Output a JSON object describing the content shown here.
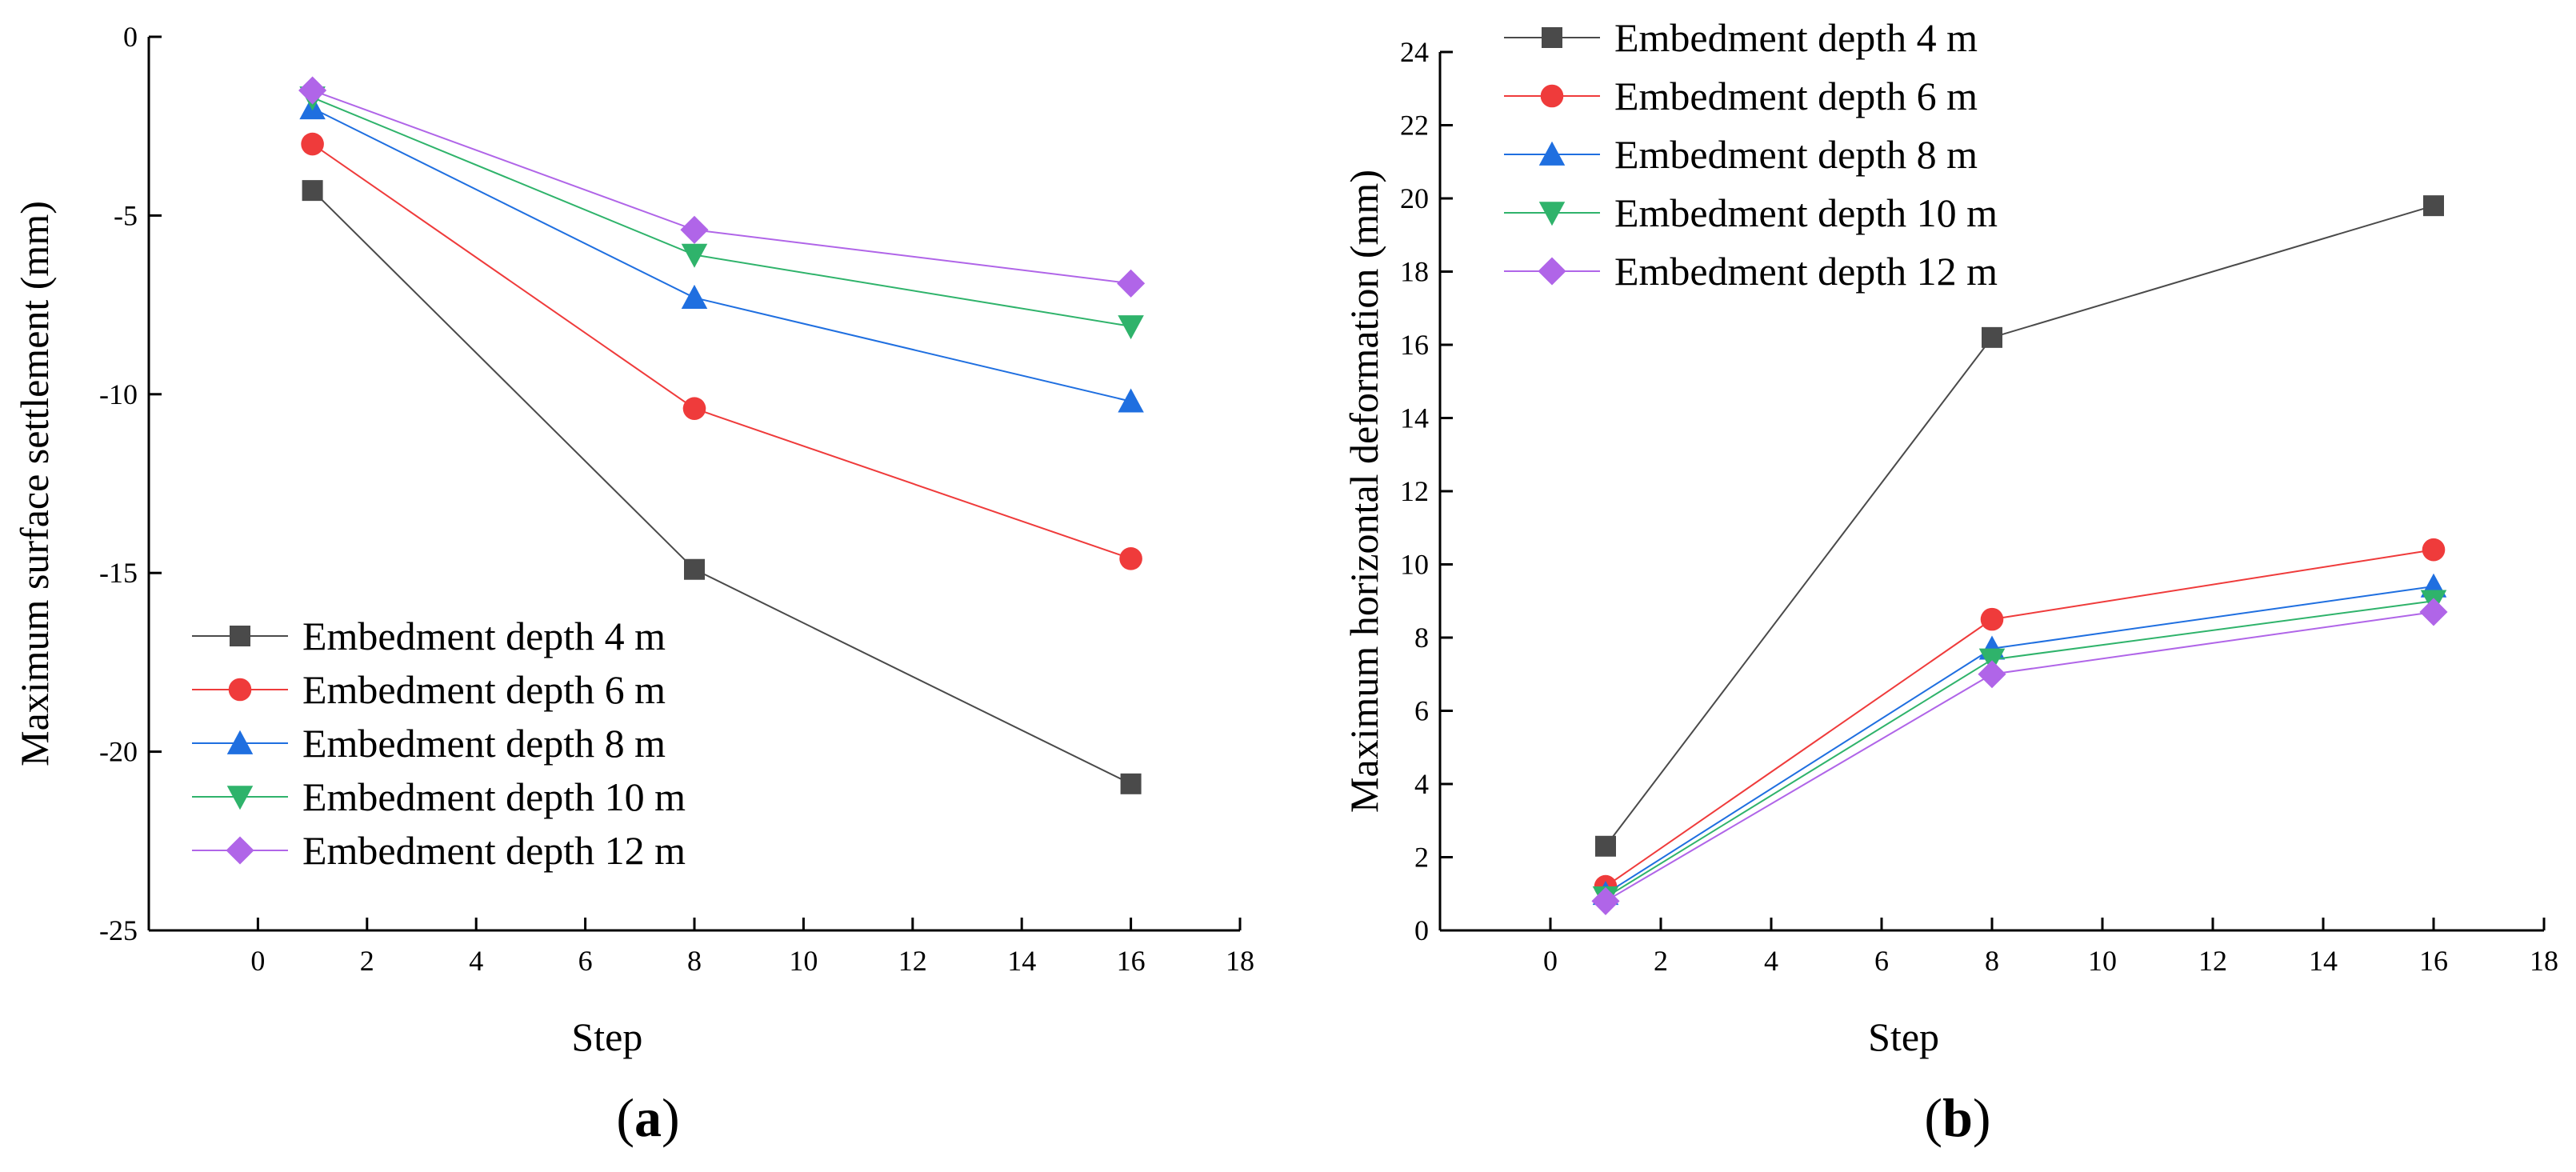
{
  "chart_data": [
    {
      "type": "line",
      "panel_label": "a",
      "title": "",
      "xlabel": "Step",
      "ylabel": "Maximum surface settlement (mm)",
      "xlim": [
        -2,
        18
      ],
      "ylim": [
        -25,
        0
      ],
      "xticks": [
        0,
        2,
        4,
        6,
        8,
        10,
        12,
        14,
        16,
        18
      ],
      "yticks": [
        0,
        -5,
        -10,
        -15,
        -20,
        -25
      ],
      "ytick_labels": [
        "0",
        "-5",
        "-10",
        "-15",
        "-20",
        "-25"
      ],
      "legend_position": "bottom-left",
      "x": [
        1,
        8,
        16
      ],
      "series": [
        {
          "name": "Embedment depth 4 m",
          "values": [
            -4.3,
            -14.9,
            -20.9
          ],
          "color": "#4a4a4a",
          "marker": "square"
        },
        {
          "name": "Embedment depth 6 m",
          "values": [
            -3.0,
            -10.4,
            -14.6
          ],
          "color": "#ef3b3b",
          "marker": "circle"
        },
        {
          "name": "Embedment depth 8 m",
          "values": [
            -2.0,
            -7.3,
            -10.2
          ],
          "color": "#1f6fe0",
          "marker": "triangle-up"
        },
        {
          "name": "Embedment depth 10 m",
          "values": [
            -1.7,
            -6.1,
            -8.1
          ],
          "color": "#2fb36b",
          "marker": "triangle-down"
        },
        {
          "name": "Embedment depth 12 m",
          "values": [
            -1.5,
            -5.4,
            -6.9
          ],
          "color": "#b065e8",
          "marker": "diamond"
        }
      ]
    },
    {
      "type": "line",
      "panel_label": "b",
      "title": "",
      "xlabel": "Step",
      "ylabel": "Maximum horizontal deformation (mm)",
      "xlim": [
        -2,
        18
      ],
      "ylim": [
        0,
        24
      ],
      "xticks": [
        0,
        2,
        4,
        6,
        8,
        10,
        12,
        14,
        16,
        18
      ],
      "yticks": [
        0,
        2,
        4,
        6,
        8,
        10,
        12,
        14,
        16,
        18,
        20,
        22,
        24
      ],
      "ytick_labels": [
        "0",
        "2",
        "4",
        "6",
        "8",
        "10",
        "12",
        "14",
        "16",
        "18",
        "20",
        "22",
        "24"
      ],
      "legend_position": "top-left",
      "x": [
        1,
        8,
        16
      ],
      "series": [
        {
          "name": "Embedment depth 4 m",
          "values": [
            2.3,
            16.2,
            19.8
          ],
          "color": "#4a4a4a",
          "marker": "square"
        },
        {
          "name": "Embedment depth 6 m",
          "values": [
            1.2,
            8.5,
            10.4
          ],
          "color": "#ef3b3b",
          "marker": "circle"
        },
        {
          "name": "Embedment depth 8 m",
          "values": [
            1.0,
            7.7,
            9.4
          ],
          "color": "#1f6fe0",
          "marker": "triangle-up"
        },
        {
          "name": "Embedment depth 10 m",
          "values": [
            0.9,
            7.4,
            9.0
          ],
          "color": "#2fb36b",
          "marker": "triangle-down"
        },
        {
          "name": "Embedment depth 12 m",
          "values": [
            0.8,
            7.0,
            8.7
          ],
          "color": "#b065e8",
          "marker": "diamond"
        }
      ]
    }
  ]
}
